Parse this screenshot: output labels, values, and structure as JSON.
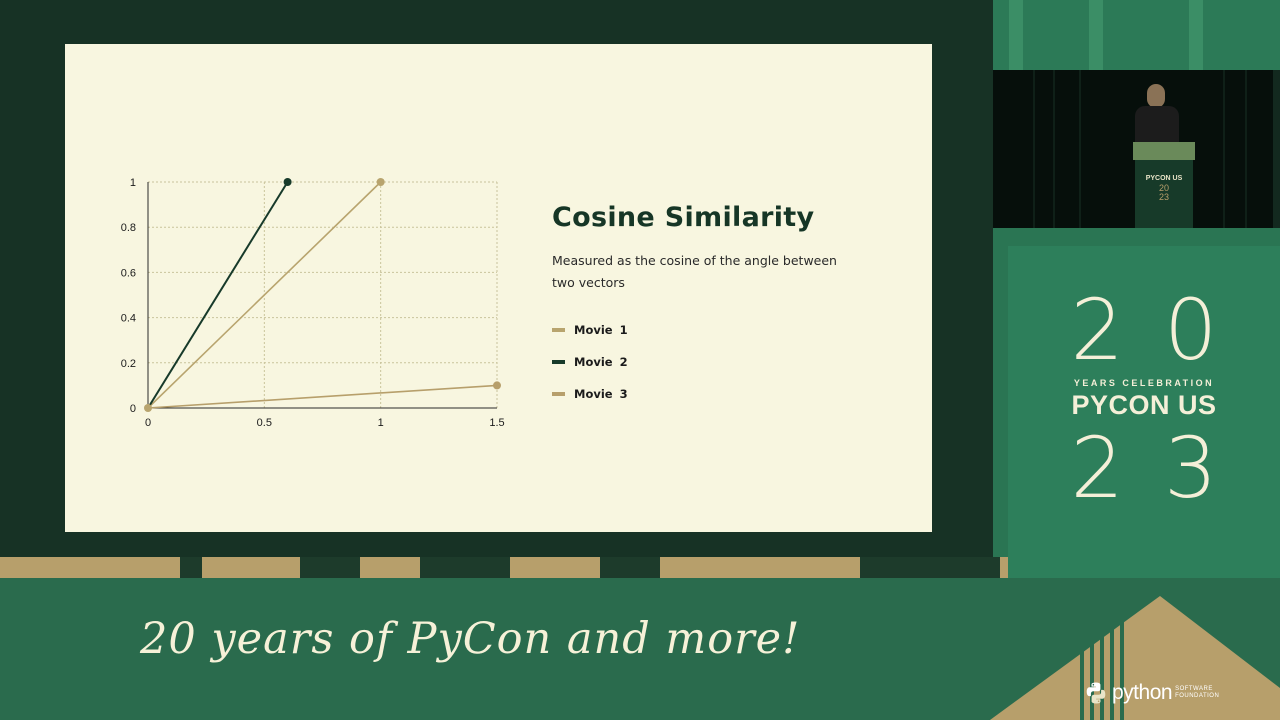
{
  "slide": {
    "title": "Cosine Similarity",
    "description": "Measured as the cosine of the angle between two vectors",
    "legend": [
      {
        "label": "Movie 1",
        "color": "#b8a46e"
      },
      {
        "label": "Movie 2",
        "color": "#173a2a"
      },
      {
        "label": "Movie 3",
        "color": "#b79f6b"
      }
    ]
  },
  "chart_data": {
    "type": "line",
    "x_ticks": [
      "0",
      "0.5",
      "1",
      "1.5"
    ],
    "y_ticks": [
      "0",
      "0.2",
      "0.4",
      "0.6",
      "0.8",
      "1"
    ],
    "xlim": [
      0,
      1.5
    ],
    "ylim": [
      0,
      1
    ],
    "grid": true,
    "series": [
      {
        "name": "Movie 1",
        "color": "#b8a46e",
        "x": [
          0,
          1
        ],
        "y": [
          0,
          1
        ]
      },
      {
        "name": "Movie 2",
        "color": "#173a2a",
        "x": [
          0,
          0.6
        ],
        "y": [
          0,
          1
        ]
      },
      {
        "name": "Movie 3",
        "color": "#b79f6b",
        "x": [
          0,
          1.5
        ],
        "y": [
          0,
          0.1
        ]
      }
    ]
  },
  "speaker_video": {
    "podium_brand": "PYCON US",
    "podium_year_top": "20",
    "podium_year_bottom": "23"
  },
  "banner": {
    "digits_top": "20",
    "years_celebration": "YEARS CELEBRATION",
    "event_name": "PYCON US",
    "digits_bottom": "23"
  },
  "tagline": "20 years of PyCon and more!",
  "psf_logo": {
    "name": "python",
    "sub_line1": "SOFTWARE",
    "sub_line2": "FOUNDATION",
    "icon": "python-logo-icon"
  }
}
